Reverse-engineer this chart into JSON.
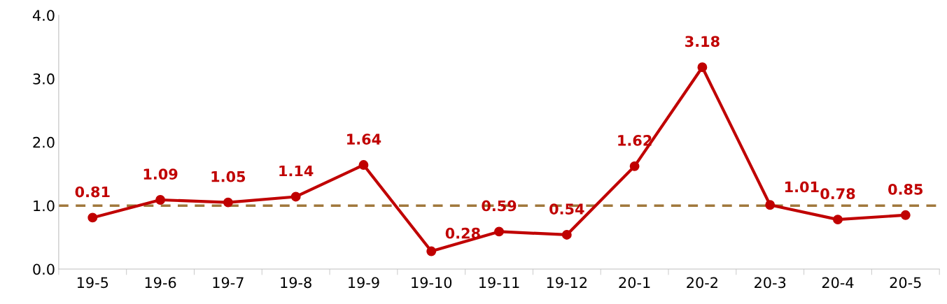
{
  "chart_data": {
    "type": "line",
    "categories": [
      "19-5",
      "19-6",
      "19-7",
      "19-8",
      "19-9",
      "19-10",
      "19-11",
      "19-12",
      "20-1",
      "20-2",
      "20-3",
      "20-4",
      "20-5"
    ],
    "series": [
      {
        "color": "#c00000",
        "values": [
          0.81,
          1.09,
          1.05,
          1.14,
          1.64,
          0.28,
          0.59,
          0.54,
          1.62,
          3.18,
          1.01,
          0.78,
          0.85
        ]
      }
    ],
    "ylim": [
      0,
      4
    ],
    "yticks": [
      {
        "value": 0,
        "label": "0.0"
      },
      {
        "value": 1,
        "label": "1.0"
      },
      {
        "value": 2,
        "label": "2.0"
      },
      {
        "value": 3,
        "label": "3.0"
      },
      {
        "value": 4,
        "label": "4.0"
      }
    ],
    "ref_lines": [
      {
        "axis": "y",
        "value": 1,
        "label": null,
        "color": "#a0783c",
        "line_style": "dashed"
      }
    ],
    "data_labels": true,
    "marker": "circle",
    "line_style": "solid",
    "grid": false,
    "legend": false
  }
}
